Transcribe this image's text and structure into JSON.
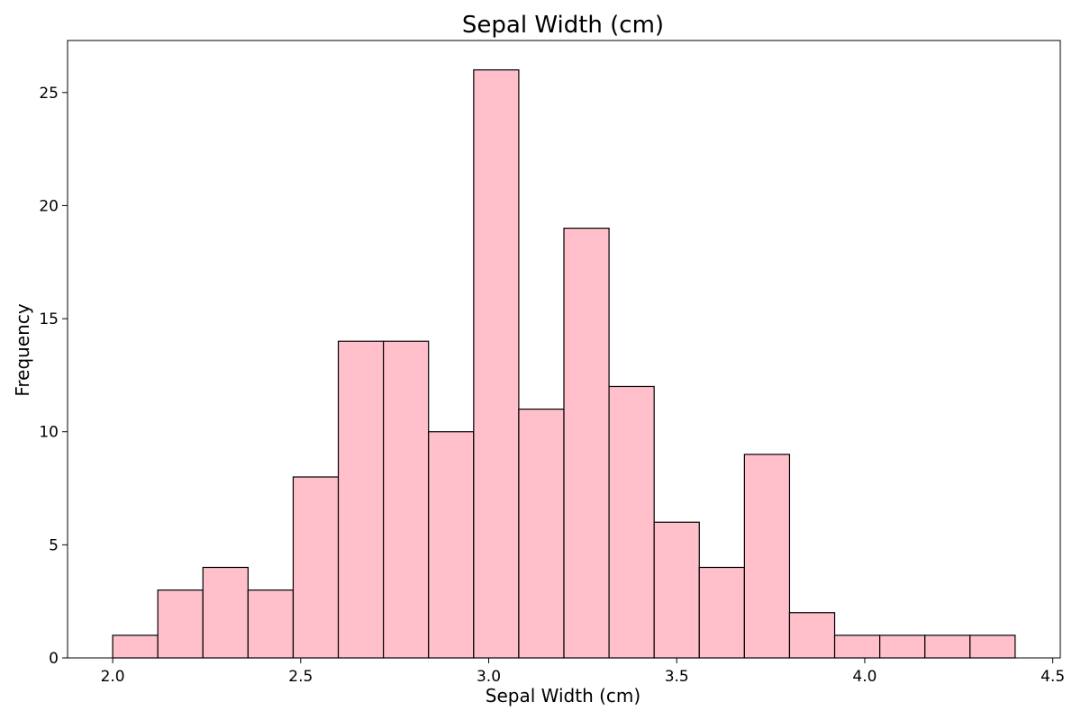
{
  "chart_data": {
    "type": "bar",
    "title": "Sepal Width (cm)",
    "xlabel": "Sepal Width (cm)",
    "ylabel": "Frequency",
    "bin_edges": [
      2.0,
      2.12,
      2.24,
      2.36,
      2.48,
      2.6,
      2.72,
      2.84,
      2.96,
      3.08,
      3.2,
      3.32,
      3.44,
      3.56,
      3.68,
      3.8,
      3.92,
      4.04,
      4.16,
      4.28,
      4.4
    ],
    "values": [
      1,
      3,
      4,
      3,
      8,
      14,
      14,
      10,
      26,
      11,
      19,
      12,
      6,
      4,
      9,
      2,
      1,
      1,
      1,
      1
    ],
    "xlim": [
      1.88,
      4.52
    ],
    "ylim": [
      0,
      27.3
    ],
    "xticks": [
      2.0,
      2.5,
      3.0,
      3.5,
      4.0,
      4.5
    ],
    "xtick_labels": [
      "2.0",
      "2.5",
      "3.0",
      "3.5",
      "4.0",
      "4.5"
    ],
    "yticks": [
      0,
      5,
      10,
      15,
      20,
      25
    ],
    "ytick_labels": [
      "0",
      "5",
      "10",
      "15",
      "20",
      "25"
    ],
    "bar_color": "#ffc0cb",
    "edge_color": "#000000",
    "grid": false,
    "legend": "none"
  }
}
